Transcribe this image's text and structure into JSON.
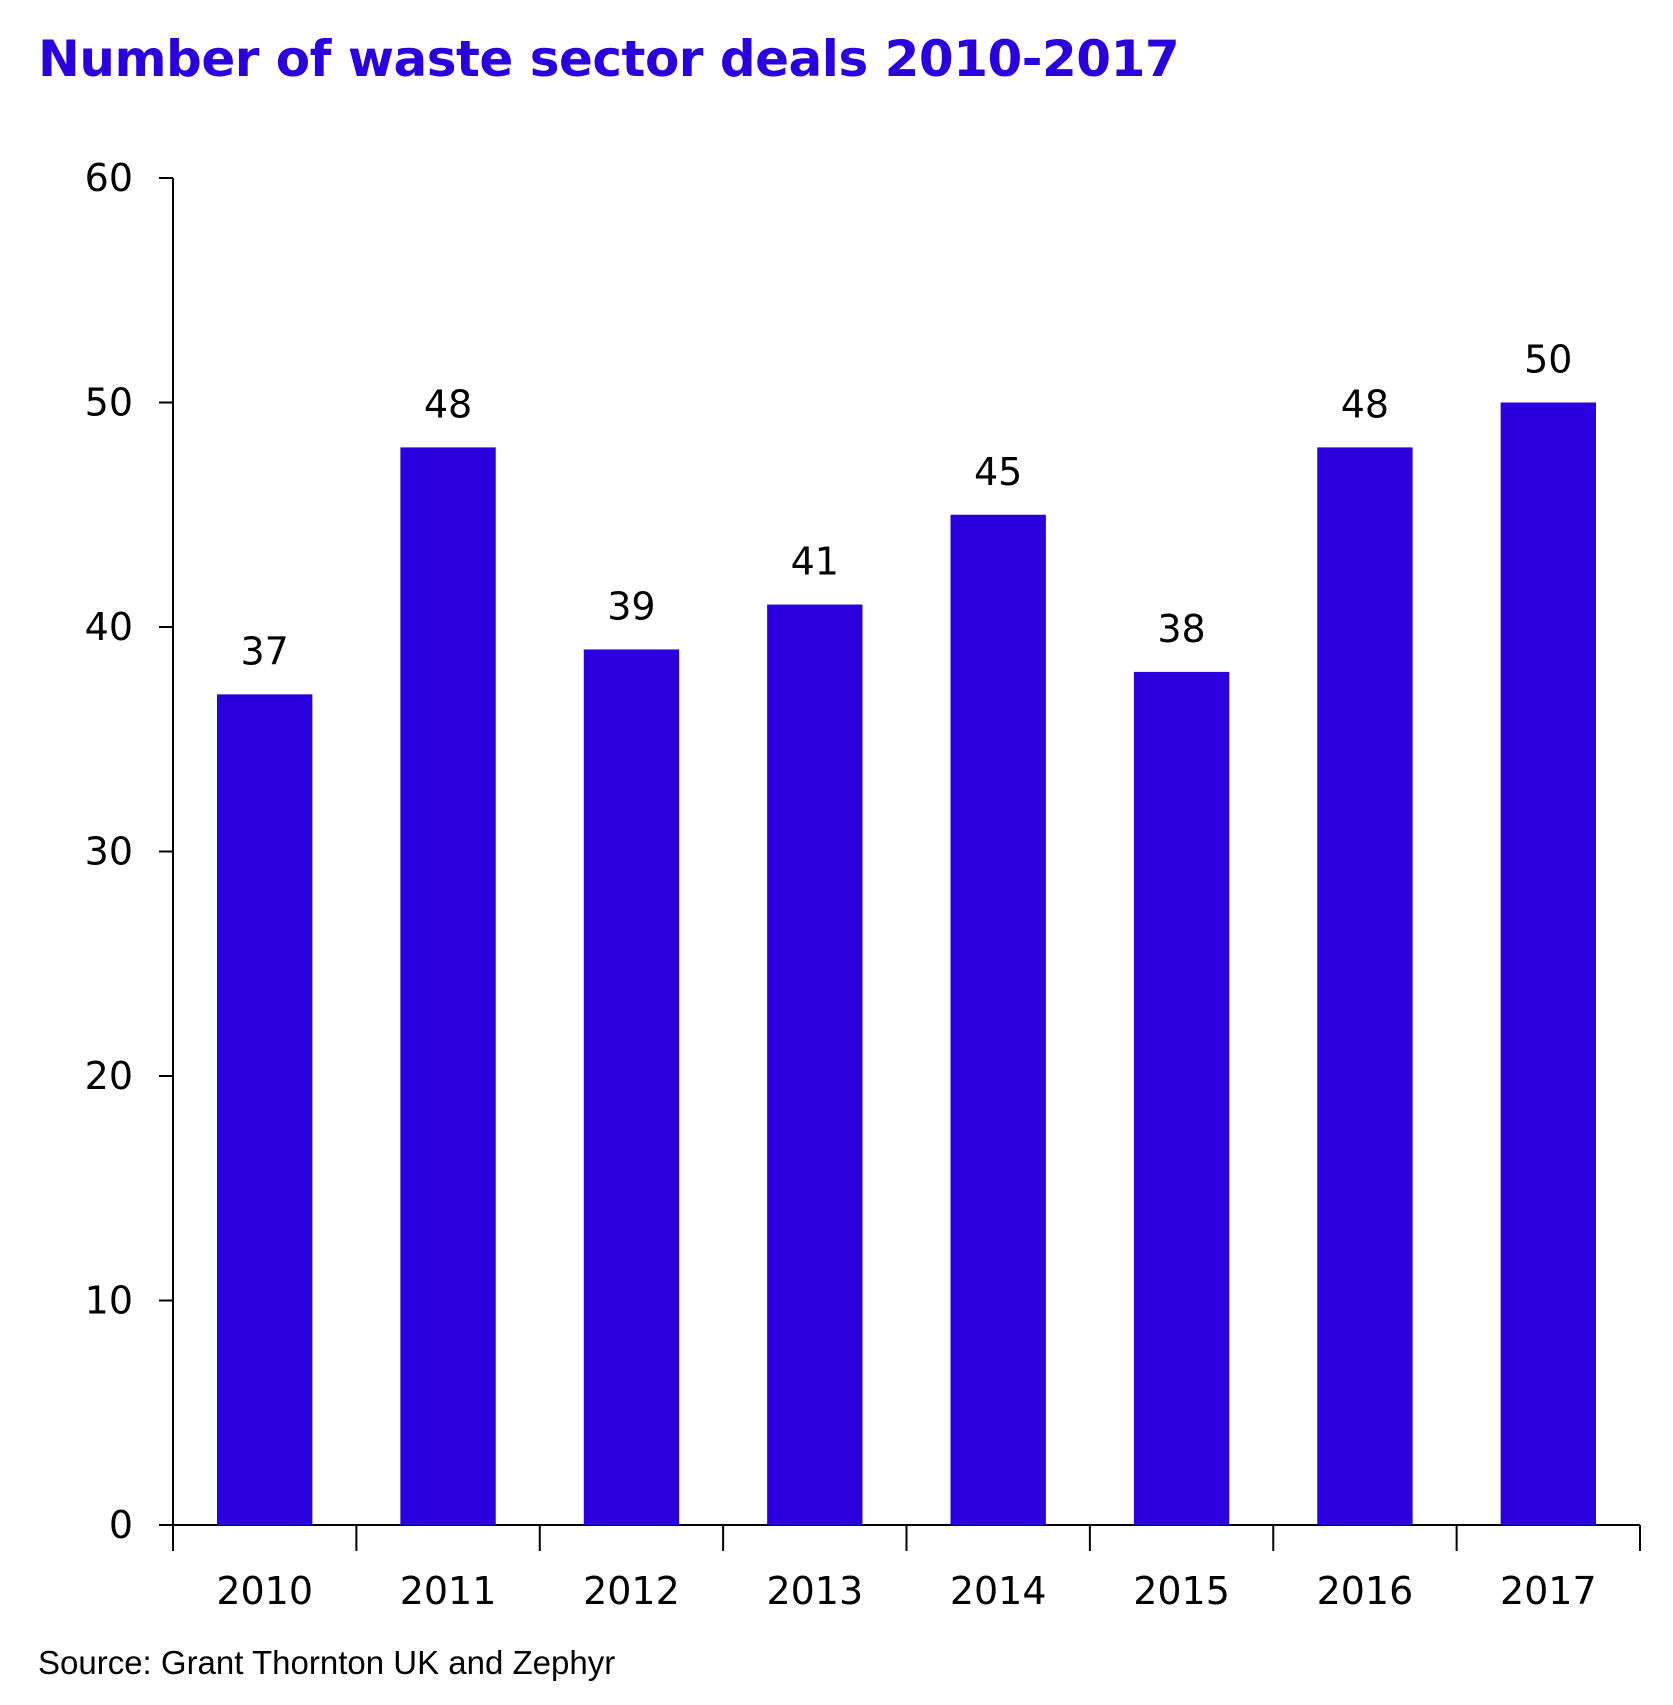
{
  "colors": {
    "accent": "#2a00df",
    "text": "#000000"
  },
  "chart_data": {
    "type": "bar",
    "title": "Number of waste sector deals 2010-2017",
    "xlabel": "",
    "ylabel": "",
    "categories": [
      "2010",
      "2011",
      "2012",
      "2013",
      "2014",
      "2015",
      "2016",
      "2017"
    ],
    "values": [
      37,
      48,
      39,
      41,
      45,
      38,
      48,
      50
    ],
    "data_labels": [
      "37",
      "48",
      "39",
      "41",
      "45",
      "38",
      "48",
      "50"
    ],
    "y_ticks": [
      "0",
      "10",
      "20",
      "30",
      "40",
      "50",
      "60"
    ],
    "ylim": [
      0,
      60
    ],
    "grid": false,
    "legend": "none",
    "source": "Source: Grant Thornton UK and Zephyr"
  }
}
